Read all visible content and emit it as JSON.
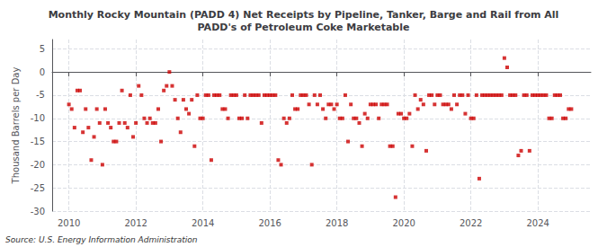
{
  "chart_data": {
    "type": "scatter",
    "title": "Monthly Rocky Mountain (PADD 4) Net Receipts by Pipeline, Tanker, Barge and Rail from All\nPADD's of Petroleum Coke Marketable",
    "ylabel": "Thousand Barrels per Day",
    "source": "Source: U.S. Energy Information Administration",
    "color": "#cc0000",
    "marker": "square",
    "grid": true,
    "xlim": [
      2009.5,
      2025.58
    ],
    "xticks": [
      2010,
      2012,
      2014,
      2016,
      2018,
      2020,
      2022,
      2024
    ],
    "ylim": [
      -30,
      7
    ],
    "yticks": [
      5,
      0,
      -5,
      -10,
      -15,
      -20,
      -25,
      -30
    ],
    "x": [
      2010.0,
      2010.083,
      2010.167,
      2010.25,
      2010.333,
      2010.417,
      2010.5,
      2010.583,
      2010.667,
      2010.75,
      2010.833,
      2010.917,
      2011.0,
      2011.083,
      2011.167,
      2011.25,
      2011.333,
      2011.417,
      2011.5,
      2011.583,
      2011.667,
      2011.75,
      2011.833,
      2011.917,
      2012.0,
      2012.083,
      2012.167,
      2012.25,
      2012.333,
      2012.417,
      2012.5,
      2012.583,
      2012.667,
      2012.75,
      2012.833,
      2012.917,
      2013.0,
      2013.083,
      2013.167,
      2013.25,
      2013.333,
      2013.417,
      2013.5,
      2013.583,
      2013.667,
      2013.75,
      2013.833,
      2013.917,
      2014.0,
      2014.083,
      2014.167,
      2014.25,
      2014.333,
      2014.417,
      2014.5,
      2014.583,
      2014.667,
      2014.75,
      2014.833,
      2014.917,
      2015.0,
      2015.083,
      2015.167,
      2015.25,
      2015.333,
      2015.417,
      2015.5,
      2015.583,
      2015.667,
      2015.75,
      2015.833,
      2015.917,
      2016.0,
      2016.083,
      2016.167,
      2016.25,
      2016.333,
      2016.417,
      2016.5,
      2016.583,
      2016.667,
      2016.75,
      2016.833,
      2016.917,
      2017.0,
      2017.083,
      2017.167,
      2017.25,
      2017.333,
      2017.417,
      2017.5,
      2017.583,
      2017.667,
      2017.75,
      2017.833,
      2017.917,
      2018.0,
      2018.083,
      2018.167,
      2018.25,
      2018.333,
      2018.417,
      2018.5,
      2018.583,
      2018.667,
      2018.75,
      2018.833,
      2018.917,
      2019.0,
      2019.083,
      2019.167,
      2019.25,
      2019.333,
      2019.417,
      2019.5,
      2019.583,
      2019.667,
      2019.75,
      2019.833,
      2019.917,
      2020.0,
      2020.083,
      2020.167,
      2020.25,
      2020.333,
      2020.417,
      2020.5,
      2020.583,
      2020.667,
      2020.75,
      2020.833,
      2020.917,
      2021.0,
      2021.083,
      2021.167,
      2021.25,
      2021.333,
      2021.417,
      2021.5,
      2021.583,
      2021.667,
      2021.75,
      2021.833,
      2021.917,
      2022.0,
      2022.083,
      2022.167,
      2022.25,
      2022.333,
      2022.417,
      2022.5,
      2022.583,
      2022.667,
      2022.75,
      2022.833,
      2022.917,
      2023.0,
      2023.083,
      2023.167,
      2023.25,
      2023.333,
      2023.417,
      2023.5,
      2023.583,
      2023.667,
      2023.75,
      2023.833,
      2023.917,
      2024.0,
      2024.083,
      2024.167,
      2024.25,
      2024.333,
      2024.417,
      2024.5,
      2024.583,
      2024.667,
      2024.75,
      2024.833,
      2024.917,
      2025.0
    ],
    "values": [
      -7,
      -8,
      -12,
      -4,
      -4,
      -13,
      -8,
      -12,
      -19,
      -14,
      -8,
      -11,
      -20,
      -8,
      -11,
      -12,
      -15,
      -15,
      -11,
      -4,
      -11,
      -12,
      -5,
      -14,
      -11,
      -3,
      -5,
      -10,
      -11,
      -10,
      -11,
      -11,
      -8,
      -15,
      -4,
      -3,
      0,
      -3,
      -6,
      -10,
      -13,
      -6,
      -8,
      -9,
      -6,
      -16,
      -5,
      -10,
      -10,
      -5,
      -5,
      -19,
      -5,
      -5,
      -5,
      -8,
      -8,
      -10,
      -5,
      -5,
      -5,
      -10,
      -10,
      -5,
      -10,
      -5,
      -5,
      -5,
      -5,
      -11,
      -5,
      -5,
      -5,
      -5,
      -5,
      -19,
      -20,
      -10,
      -11,
      -10,
      -5,
      -8,
      -8,
      -5,
      -5,
      -5,
      -7,
      -20,
      -5,
      -7,
      -5,
      -8,
      -10,
      -7,
      -7,
      -8,
      -7,
      -10,
      -10,
      -5,
      -15,
      -7,
      -10,
      -10,
      -11,
      -16,
      -9,
      -10,
      -7,
      -7,
      -7,
      -10,
      -7,
      -7,
      -7,
      -16,
      -16,
      -27,
      -9,
      -9,
      -10,
      -10,
      -9,
      -16,
      -5,
      -8,
      -6,
      -7,
      -17,
      -5,
      -5,
      -7,
      -5,
      -5,
      -7,
      -7,
      -7,
      -8,
      -5,
      -7,
      -5,
      -5,
      -9,
      -5,
      -10,
      -10,
      -5,
      -23,
      -5,
      -5,
      -5,
      -5,
      -5,
      -5,
      -5,
      -5,
      3,
      1,
      -5,
      -5,
      -5,
      -18,
      -17,
      -5,
      -5,
      -17,
      -5,
      -5,
      -5,
      -5,
      -5,
      -5,
      -10,
      -10,
      -5,
      -5,
      -5,
      -10,
      -10,
      -8,
      -8
    ]
  }
}
